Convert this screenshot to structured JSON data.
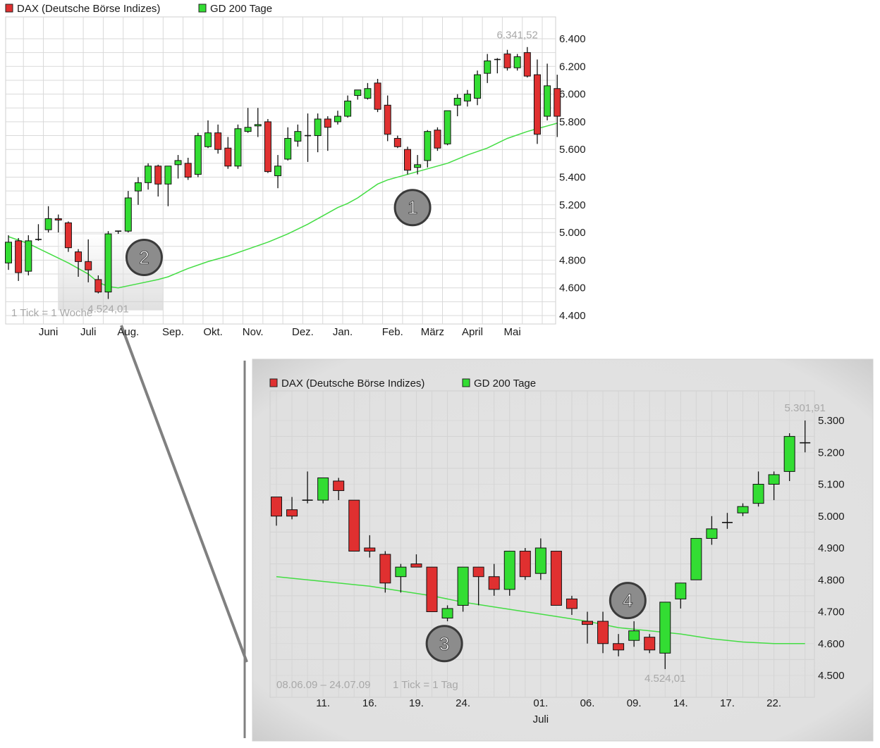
{
  "colors": {
    "up": "#33dd33",
    "down": "#e03030",
    "ma": "#44dd44",
    "grid": "#d9d9d9",
    "label_gray": "#a8a8a8",
    "marker_fill": "#8c8c8c"
  },
  "chart_data": [
    {
      "type": "candlestick",
      "id": "main",
      "legend": [
        {
          "name": "DAX (Deutsche Börse Indizes)",
          "color": "#e03030"
        },
        {
          "name": "GD 200 Tage",
          "color": "#33dd33"
        }
      ],
      "tick_note": "1 Tick = 1 Woche",
      "ylim": [
        4380,
        6440
      ],
      "y_ticks": [
        {
          "v": 6400,
          "label": "6.400"
        },
        {
          "v": 6200,
          "label": "6.200"
        },
        {
          "v": 6000,
          "label": "6.000"
        },
        {
          "v": 5800,
          "label": "5.800"
        },
        {
          "v": 5600,
          "label": "5.600"
        },
        {
          "v": 5400,
          "label": "5.400"
        },
        {
          "v": 5200,
          "label": "5.200"
        },
        {
          "v": 5000,
          "label": "5.000"
        },
        {
          "v": 4800,
          "label": "4.800"
        },
        {
          "v": 4600,
          "label": "4.600"
        },
        {
          "v": 4400,
          "label": "4.400"
        }
      ],
      "x_labels": [
        {
          "i": 4,
          "label": "Juni"
        },
        {
          "i": 8,
          "label": "Juli"
        },
        {
          "i": 12,
          "label": "Aug."
        },
        {
          "i": 16.5,
          "label": "Sep."
        },
        {
          "i": 20.5,
          "label": "Okt."
        },
        {
          "i": 24.5,
          "label": "Nov."
        },
        {
          "i": 29.5,
          "label": "Dez."
        },
        {
          "i": 33.5,
          "label": "Jan."
        },
        {
          "i": 38.5,
          "label": "Feb."
        },
        {
          "i": 42.5,
          "label": "März"
        },
        {
          "i": 46.5,
          "label": "April"
        },
        {
          "i": 50.5,
          "label": "Mai"
        }
      ],
      "annotations": [
        {
          "i": 10,
          "v": 4524.01,
          "label": "4.524,01",
          "pos": "below"
        },
        {
          "i": 51,
          "v": 6341.52,
          "label": "6.341,52",
          "pos": "above"
        }
      ],
      "markers": [
        {
          "label": "1",
          "i": 40.5,
          "v": 5180
        },
        {
          "label": "2",
          "i": 13.6,
          "v": 4820
        }
      ],
      "highlight": {
        "i0": 5,
        "i1": 15.5,
        "v0": 4440,
        "v1": 4990
      },
      "candles": [
        {
          "o": 4780,
          "h": 4980,
          "l": 4730,
          "c": 4930
        },
        {
          "o": 4940,
          "h": 4960,
          "l": 4650,
          "c": 4710
        },
        {
          "o": 4720,
          "h": 4980,
          "l": 4690,
          "c": 4940
        },
        {
          "o": 4950,
          "h": 5060,
          "l": 4940,
          "c": 4950
        },
        {
          "o": 5020,
          "h": 5190,
          "l": 5000,
          "c": 5100
        },
        {
          "o": 5100,
          "h": 5130,
          "l": 5000,
          "c": 5090
        },
        {
          "o": 5070,
          "h": 5080,
          "l": 4860,
          "c": 4890
        },
        {
          "o": 4860,
          "h": 4880,
          "l": 4680,
          "c": 4790
        },
        {
          "o": 4790,
          "h": 4950,
          "l": 4640,
          "c": 4730
        },
        {
          "o": 4660,
          "h": 4690,
          "l": 4560,
          "c": 4570
        },
        {
          "o": 4570,
          "h": 5010,
          "l": 4520,
          "c": 4990
        },
        {
          "o": 5010,
          "h": 5010,
          "l": 4990,
          "c": 5010
        },
        {
          "o": 5010,
          "h": 5300,
          "l": 5000,
          "c": 5250
        },
        {
          "o": 5300,
          "h": 5400,
          "l": 5200,
          "c": 5360
        },
        {
          "o": 5360,
          "h": 5500,
          "l": 5310,
          "c": 5480
        },
        {
          "o": 5480,
          "h": 5490,
          "l": 5260,
          "c": 5350
        },
        {
          "o": 5350,
          "h": 5480,
          "l": 5190,
          "c": 5480
        },
        {
          "o": 5490,
          "h": 5560,
          "l": 5390,
          "c": 5520
        },
        {
          "o": 5500,
          "h": 5540,
          "l": 5380,
          "c": 5400
        },
        {
          "o": 5420,
          "h": 5720,
          "l": 5400,
          "c": 5700
        },
        {
          "o": 5620,
          "h": 5810,
          "l": 5610,
          "c": 5720
        },
        {
          "o": 5720,
          "h": 5780,
          "l": 5570,
          "c": 5600
        },
        {
          "o": 5610,
          "h": 5690,
          "l": 5460,
          "c": 5480
        },
        {
          "o": 5480,
          "h": 5780,
          "l": 5460,
          "c": 5750
        },
        {
          "o": 5730,
          "h": 5900,
          "l": 5720,
          "c": 5760
        },
        {
          "o": 5770,
          "h": 5900,
          "l": 5690,
          "c": 5780
        },
        {
          "o": 5800,
          "h": 5820,
          "l": 5430,
          "c": 5440
        },
        {
          "o": 5410,
          "h": 5560,
          "l": 5320,
          "c": 5480
        },
        {
          "o": 5530,
          "h": 5760,
          "l": 5520,
          "c": 5680
        },
        {
          "o": 5660,
          "h": 5780,
          "l": 5620,
          "c": 5730
        },
        {
          "o": 5700,
          "h": 5860,
          "l": 5510,
          "c": 5700
        },
        {
          "o": 5700,
          "h": 5860,
          "l": 5580,
          "c": 5820
        },
        {
          "o": 5820,
          "h": 5840,
          "l": 5590,
          "c": 5760
        },
        {
          "o": 5800,
          "h": 5880,
          "l": 5780,
          "c": 5840
        },
        {
          "o": 5840,
          "h": 5990,
          "l": 5830,
          "c": 5950
        },
        {
          "o": 5990,
          "h": 6030,
          "l": 5960,
          "c": 6030
        },
        {
          "o": 5970,
          "h": 6080,
          "l": 5960,
          "c": 6040
        },
        {
          "o": 6080,
          "h": 6110,
          "l": 5870,
          "c": 5890
        },
        {
          "o": 5920,
          "h": 5990,
          "l": 5660,
          "c": 5710
        },
        {
          "o": 5680,
          "h": 5700,
          "l": 5610,
          "c": 5620
        },
        {
          "o": 5600,
          "h": 5620,
          "l": 5420,
          "c": 5450
        },
        {
          "o": 5470,
          "h": 5560,
          "l": 5420,
          "c": 5490
        },
        {
          "o": 5520,
          "h": 5740,
          "l": 5470,
          "c": 5730
        },
        {
          "o": 5740,
          "h": 5760,
          "l": 5590,
          "c": 5610
        },
        {
          "o": 5640,
          "h": 5880,
          "l": 5630,
          "c": 5880
        },
        {
          "o": 5920,
          "h": 6000,
          "l": 5840,
          "c": 5970
        },
        {
          "o": 5950,
          "h": 6030,
          "l": 5910,
          "c": 6000
        },
        {
          "o": 5970,
          "h": 6170,
          "l": 5920,
          "c": 6140
        },
        {
          "o": 6150,
          "h": 6290,
          "l": 6080,
          "c": 6240
        },
        {
          "o": 6250,
          "h": 6260,
          "l": 6150,
          "c": 6250
        },
        {
          "o": 6290,
          "h": 6320,
          "l": 6170,
          "c": 6190
        },
        {
          "o": 6190,
          "h": 6290,
          "l": 6170,
          "c": 6270
        },
        {
          "o": 6300,
          "h": 6340,
          "l": 6120,
          "c": 6130
        },
        {
          "o": 6140,
          "h": 6250,
          "l": 5640,
          "c": 5710
        },
        {
          "o": 5840,
          "h": 6220,
          "l": 5810,
          "c": 6060
        },
        {
          "o": 6040,
          "h": 6140,
          "l": 5690,
          "c": 5840
        }
      ],
      "ma": [
        [
          0,
          4970
        ],
        [
          2,
          4920
        ],
        [
          4,
          4850
        ],
        [
          6,
          4780
        ],
        [
          8,
          4700
        ],
        [
          9,
          4640
        ],
        [
          10,
          4610
        ],
        [
          11,
          4600
        ],
        [
          13,
          4630
        ],
        [
          15,
          4660
        ],
        [
          16,
          4680
        ],
        [
          18,
          4740
        ],
        [
          20,
          4790
        ],
        [
          22,
          4830
        ],
        [
          24,
          4880
        ],
        [
          26,
          4930
        ],
        [
          28,
          4990
        ],
        [
          30,
          5060
        ],
        [
          32,
          5140
        ],
        [
          33,
          5180
        ],
        [
          34,
          5210
        ],
        [
          35,
          5250
        ],
        [
          36,
          5300
        ],
        [
          37,
          5350
        ],
        [
          38,
          5380
        ],
        [
          40,
          5420
        ],
        [
          42,
          5460
        ],
        [
          44,
          5500
        ],
        [
          46,
          5560
        ],
        [
          48,
          5610
        ],
        [
          50,
          5680
        ],
        [
          52,
          5730
        ],
        [
          54,
          5770
        ],
        [
          55,
          5790
        ]
      ]
    },
    {
      "type": "candlestick",
      "id": "zoom",
      "legend": [
        {
          "name": "DAX (Deutsche Börse Indizes)",
          "color": "#e03030"
        },
        {
          "name": "GD 200 Tage",
          "color": "#33dd33"
        }
      ],
      "date_range": "08.06.09 – 24.07.09",
      "tick_note": "1 Tick = 1 Tag",
      "ylim": [
        4490,
        5320
      ],
      "y_ticks": [
        {
          "v": 5300,
          "label": "5.300"
        },
        {
          "v": 5200,
          "label": "5.200"
        },
        {
          "v": 5100,
          "label": "5.100"
        },
        {
          "v": 5000,
          "label": "5.000"
        },
        {
          "v": 4900,
          "label": "4.900"
        },
        {
          "v": 4800,
          "label": "4.800"
        },
        {
          "v": 4700,
          "label": "4.700"
        },
        {
          "v": 4600,
          "label": "4.600"
        },
        {
          "v": 4500,
          "label": "4.500"
        }
      ],
      "x_labels": [
        {
          "i": 3,
          "label": "11."
        },
        {
          "i": 6,
          "label": "16."
        },
        {
          "i": 9,
          "label": "19."
        },
        {
          "i": 12,
          "label": "24."
        },
        {
          "i": 17,
          "label": "01."
        },
        {
          "i": 20,
          "label": "06."
        },
        {
          "i": 23,
          "label": "09."
        },
        {
          "i": 26,
          "label": "14."
        },
        {
          "i": 29,
          "label": "17."
        },
        {
          "i": 32,
          "label": "22."
        }
      ],
      "month_label": {
        "i": 17,
        "label": "Juli"
      },
      "annotations": [
        {
          "i": 25,
          "v": 4524.01,
          "label": "4.524,01",
          "pos": "below"
        },
        {
          "i": 34,
          "v": 5301.91,
          "label": "5.301,91",
          "pos": "above"
        }
      ],
      "markers": [
        {
          "label": "3",
          "i": 10.8,
          "v": 4600
        },
        {
          "label": "4",
          "i": 22.6,
          "v": 4735
        }
      ],
      "candles": [
        {
          "o": 5060,
          "h": 5060,
          "l": 4970,
          "c": 5000
        },
        {
          "o": 5020,
          "h": 5060,
          "l": 4990,
          "c": 5000
        },
        {
          "o": 5050,
          "h": 5140,
          "l": 5040,
          "c": 5050
        },
        {
          "o": 5050,
          "h": 5120,
          "l": 5040,
          "c": 5120
        },
        {
          "o": 5110,
          "h": 5120,
          "l": 5050,
          "c": 5080
        },
        {
          "o": 5050,
          "h": 5050,
          "l": 4890,
          "c": 4890
        },
        {
          "o": 4900,
          "h": 4940,
          "l": 4870,
          "c": 4890
        },
        {
          "o": 4880,
          "h": 4890,
          "l": 4760,
          "c": 4790
        },
        {
          "o": 4810,
          "h": 4850,
          "l": 4760,
          "c": 4840
        },
        {
          "o": 4850,
          "h": 4880,
          "l": 4840,
          "c": 4840
        },
        {
          "o": 4840,
          "h": 4840,
          "l": 4700,
          "c": 4700
        },
        {
          "o": 4680,
          "h": 4720,
          "l": 4670,
          "c": 4710
        },
        {
          "o": 4720,
          "h": 4840,
          "l": 4700,
          "c": 4840
        },
        {
          "o": 4840,
          "h": 4840,
          "l": 4720,
          "c": 4810
        },
        {
          "o": 4810,
          "h": 4850,
          "l": 4750,
          "c": 4770
        },
        {
          "o": 4770,
          "h": 4890,
          "l": 4750,
          "c": 4890
        },
        {
          "o": 4890,
          "h": 4900,
          "l": 4800,
          "c": 4810
        },
        {
          "o": 4820,
          "h": 4930,
          "l": 4800,
          "c": 4900
        },
        {
          "o": 4890,
          "h": 4890,
          "l": 4720,
          "c": 4720
        },
        {
          "o": 4740,
          "h": 4750,
          "l": 4690,
          "c": 4710
        },
        {
          "o": 4670,
          "h": 4700,
          "l": 4600,
          "c": 4660
        },
        {
          "o": 4670,
          "h": 4700,
          "l": 4570,
          "c": 4600
        },
        {
          "o": 4600,
          "h": 4630,
          "l": 4560,
          "c": 4580
        },
        {
          "o": 4610,
          "h": 4670,
          "l": 4590,
          "c": 4640
        },
        {
          "o": 4620,
          "h": 4630,
          "l": 4570,
          "c": 4580
        },
        {
          "o": 4570,
          "h": 4730,
          "l": 4520,
          "c": 4730
        },
        {
          "o": 4740,
          "h": 4790,
          "l": 4710,
          "c": 4790
        },
        {
          "o": 4800,
          "h": 4930,
          "l": 4800,
          "c": 4930
        },
        {
          "o": 4930,
          "h": 5000,
          "l": 4910,
          "c": 4960
        },
        {
          "o": 4980,
          "h": 5010,
          "l": 4960,
          "c": 4980
        },
        {
          "o": 5010,
          "h": 5040,
          "l": 5000,
          "c": 5030
        },
        {
          "o": 5040,
          "h": 5140,
          "l": 5030,
          "c": 5100
        },
        {
          "o": 5100,
          "h": 5140,
          "l": 5050,
          "c": 5130
        },
        {
          "o": 5140,
          "h": 5260,
          "l": 5110,
          "c": 5250
        },
        {
          "o": 5230,
          "h": 5300,
          "l": 5200,
          "c": 5230
        }
      ],
      "ma": [
        [
          0,
          4810
        ],
        [
          2,
          4800
        ],
        [
          4,
          4790
        ],
        [
          6,
          4780
        ],
        [
          8,
          4765
        ],
        [
          10,
          4750
        ],
        [
          12,
          4730
        ],
        [
          14,
          4715
        ],
        [
          16,
          4700
        ],
        [
          18,
          4685
        ],
        [
          20,
          4670
        ],
        [
          22,
          4650
        ],
        [
          24,
          4640
        ],
        [
          26,
          4630
        ],
        [
          28,
          4615
        ],
        [
          30,
          4605
        ],
        [
          32,
          4600
        ],
        [
          34,
          4600
        ]
      ]
    }
  ]
}
